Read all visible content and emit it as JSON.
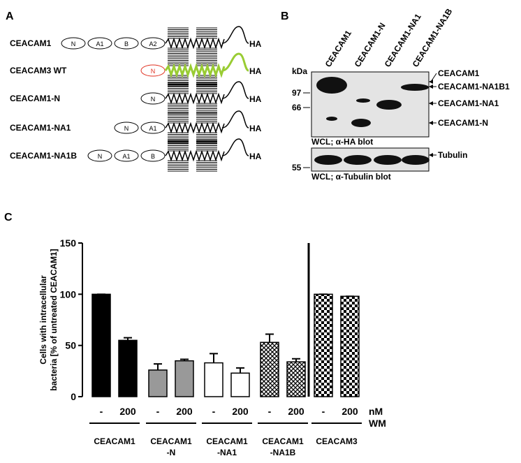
{
  "panel_a": {
    "label": "A",
    "tag": "HA",
    "constructs": [
      {
        "name": "CEACAM1",
        "domains": [
          "N",
          "A1",
          "B",
          "A2"
        ]
      },
      {
        "name": "CEACAM3 WT",
        "domains": [
          "N"
        ],
        "color": "#99cc33",
        "domain_color": "#e03020"
      },
      {
        "name": "CEACAM1-N",
        "domains": [
          "N"
        ]
      },
      {
        "name": "CEACAM1-NA1",
        "domains": [
          "N",
          "A1"
        ]
      },
      {
        "name": "CEACAM1-NA1B",
        "domains": [
          "N",
          "A1",
          "B"
        ]
      }
    ]
  },
  "panel_b": {
    "label": "B",
    "unit": "kDa",
    "lanes": [
      "CEACAM1",
      "CEACAM1-N",
      "CEACAM1-NA1",
      "CEACAM1-NA1B"
    ],
    "markers": [
      97,
      66,
      55
    ],
    "band_labels": [
      "CEACAM1",
      "CEACAM1-NA1B1",
      "CEACAM1-NA1",
      "CEACAM1-N",
      "Tubulin"
    ],
    "captions": [
      "WCL; α-HA blot",
      "WCL; α-Tubulin blot"
    ]
  },
  "chart_data": {
    "type": "bar",
    "panel_label": "C",
    "ylabel": [
      "Cells with intracellular",
      "bacteria [% of untreated CEACAM1]"
    ],
    "categories": [
      "-",
      "200",
      "-",
      "200",
      "-",
      "200",
      "-",
      "200",
      "-",
      "200"
    ],
    "values": [
      100,
      55,
      26,
      35,
      33,
      23,
      53,
      34,
      100,
      98
    ],
    "errors": [
      0,
      2.5,
      6,
      1.5,
      9,
      5,
      8,
      3,
      0,
      0
    ],
    "dose_unit": "nM",
    "treatment": "WM",
    "groups": [
      {
        "name": [
          "CEACAM1"
        ],
        "fill": "#000000"
      },
      {
        "name": [
          "CEACAM1",
          "-N"
        ],
        "fill": "#999999"
      },
      {
        "name": [
          "CEACAM1",
          "-NA1"
        ],
        "fill": "#ffffff"
      },
      {
        "name": [
          "CEACAM1",
          "-NA1B"
        ],
        "fill": "crosshatch"
      },
      {
        "name": [
          "CEACAM3"
        ],
        "fill": "checker"
      }
    ],
    "ylim": [
      0,
      150
    ],
    "yticks": [
      0,
      50,
      100,
      150
    ]
  }
}
